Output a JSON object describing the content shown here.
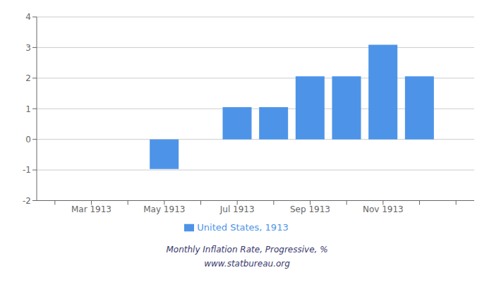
{
  "chart_data": {
    "type": "bar",
    "subtitle": "Monthly Inflation Rate, Progressive, %",
    "annotations": [
      "www.statbureau.org"
    ],
    "categories": [
      null,
      "Mar 1913",
      null,
      "May 1913",
      null,
      "Jul 1913",
      null,
      "Sep 1913",
      null,
      "Nov 1913",
      null,
      null
    ],
    "series": [
      {
        "name": "United States, 1913",
        "color": "#4d94e8",
        "values": [
          null,
          null,
          null,
          -0.97,
          null,
          1.05,
          1.05,
          2.06,
          2.06,
          3.09,
          2.06,
          null
        ]
      }
    ],
    "ylim": [
      -2,
      4
    ],
    "yticks": [
      -2,
      -1,
      0,
      1,
      2,
      3,
      4
    ],
    "grid": true,
    "legend": "bottom"
  }
}
